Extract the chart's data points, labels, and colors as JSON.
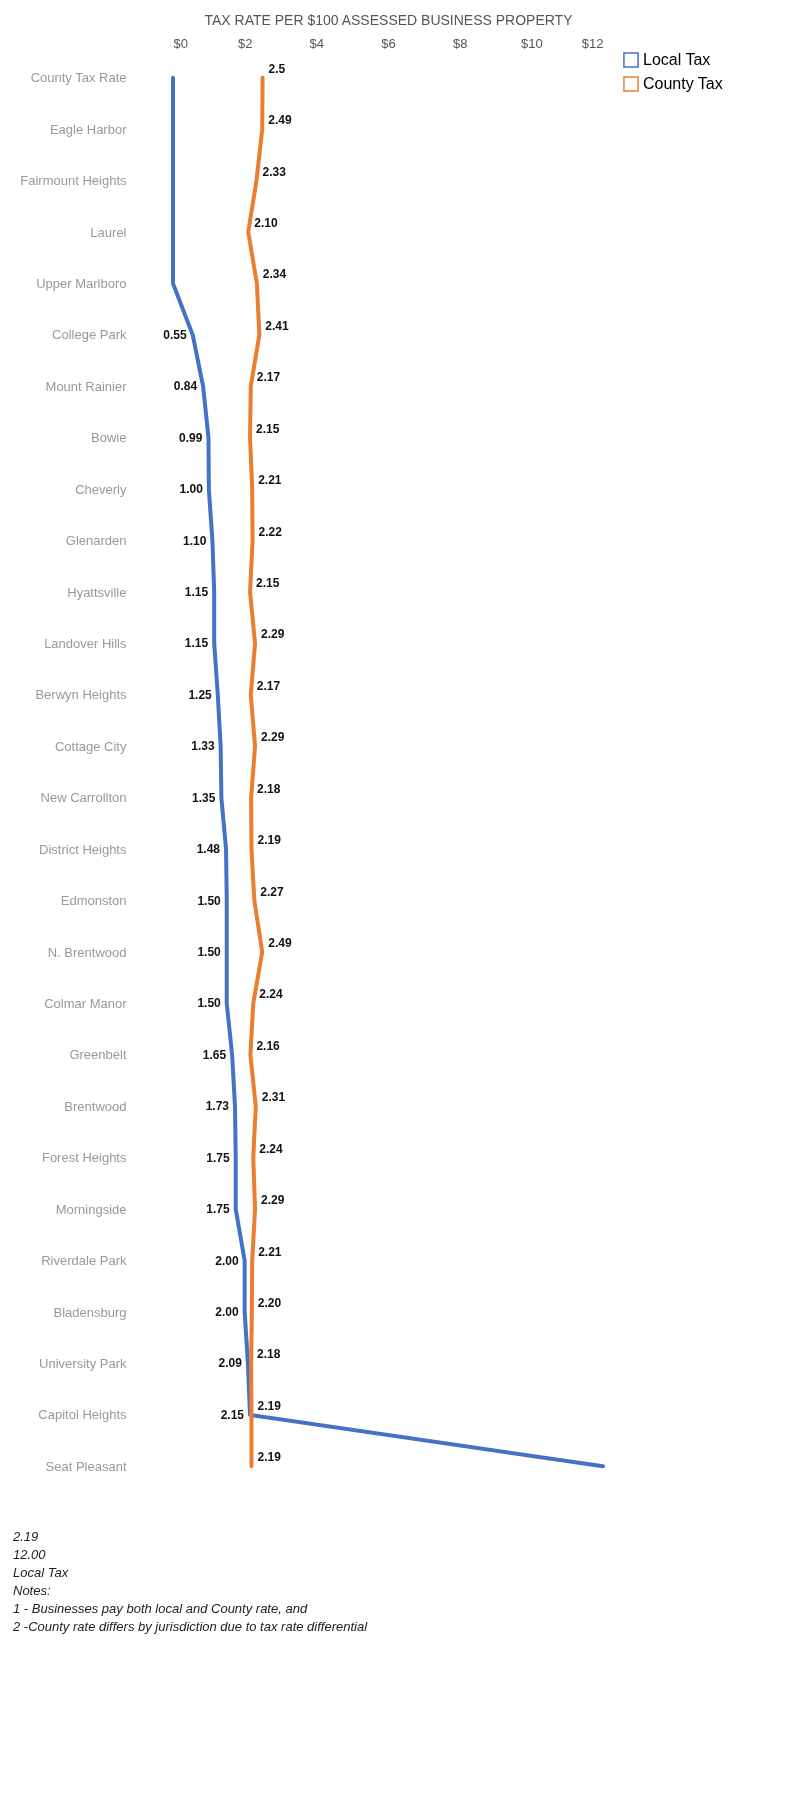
{
  "chart_data": {
    "type": "line",
    "orientation": "horizontal",
    "xlabel": "TAX RATE PER $100 ASSESSED BUSINESS PROPERTY",
    "categories": [
      "County Tax Rate",
      "Eagle Harbor",
      "Fairmount Heights",
      "Laurel",
      "Upper Marlboro",
      "College Park",
      "Mount Rainier",
      "Bowie",
      "Cheverly",
      "Glenarden",
      "Hyattsville",
      "Landover Hills",
      "Berwyn Heights",
      "Cottage City",
      "New Carrollton",
      "District Heights",
      "Edmonston",
      "N. Brentwood",
      "Colmar Manor",
      "Greenbelt",
      "Brentwood",
      "Forest Heights",
      "Morningside",
      "Riverdale Park",
      "Bladensburg",
      "University Park",
      "Capitol Heights",
      "Seat Pleasant"
    ],
    "series": [
      {
        "name": "Local Tax",
        "color": "#4472c4",
        "values": [
          0,
          0,
          0,
          0,
          0,
          0.55,
          0.84,
          0.99,
          1.0,
          1.1,
          1.15,
          1.15,
          1.25,
          1.33,
          1.35,
          1.48,
          1.5,
          1.5,
          1.5,
          1.65,
          1.73,
          1.75,
          1.75,
          2.0,
          2.0,
          2.09,
          2.15,
          12.0
        ],
        "value_labels": [
          null,
          null,
          null,
          null,
          null,
          "0.55",
          "0.84",
          "0.99",
          "1.00",
          "1.10",
          "1.15",
          "1.15",
          "1.25",
          "1.33",
          "1.35",
          "1.48",
          "1.50",
          "1.50",
          "1.50",
          "1.65",
          "1.73",
          "1.75",
          "1.75",
          "2.00",
          "2.00",
          "2.09",
          "2.15",
          null
        ]
      },
      {
        "name": "County Tax",
        "color": "#ed7d31",
        "values": [
          2.5,
          2.49,
          2.33,
          2.1,
          2.34,
          2.41,
          2.17,
          2.15,
          2.21,
          2.22,
          2.15,
          2.29,
          2.17,
          2.29,
          2.18,
          2.19,
          2.27,
          2.49,
          2.24,
          2.16,
          2.31,
          2.24,
          2.29,
          2.21,
          2.2,
          2.18,
          2.19,
          2.19
        ],
        "value_labels": [
          "2.5",
          "2.49",
          "2.33",
          "2.10",
          "2.34",
          "2.41",
          "2.17",
          "2.15",
          "2.21",
          "2.22",
          "2.15",
          "2.29",
          "2.17",
          "2.29",
          "2.18",
          "2.19",
          "2.27",
          "2.49",
          "2.24",
          "2.16",
          "2.31",
          "2.24",
          "2.29",
          "2.21",
          "2.20",
          "2.18",
          "2.19",
          "2.19"
        ]
      }
    ],
    "xlim": [
      0,
      12
    ],
    "xticks": [
      {
        "value": 0,
        "label": "$0"
      },
      {
        "value": 2,
        "label": "$2"
      },
      {
        "value": 4,
        "label": "$4"
      },
      {
        "value": 6,
        "label": "$6"
      },
      {
        "value": 8,
        "label": "$8"
      },
      {
        "value": 10,
        "label": "$10"
      },
      {
        "value": 12,
        "label": "$12"
      }
    ],
    "grid": false,
    "legend": "right",
    "marker": "none",
    "line_style": "solid",
    "annotations": [
      "2.19",
      "12.00",
      "Local Tax",
      "Notes:",
      "1 - Businesses pay both local and County rate, and",
      "2 -County rate differs by jurisdiction due to tax rate differential"
    ]
  }
}
